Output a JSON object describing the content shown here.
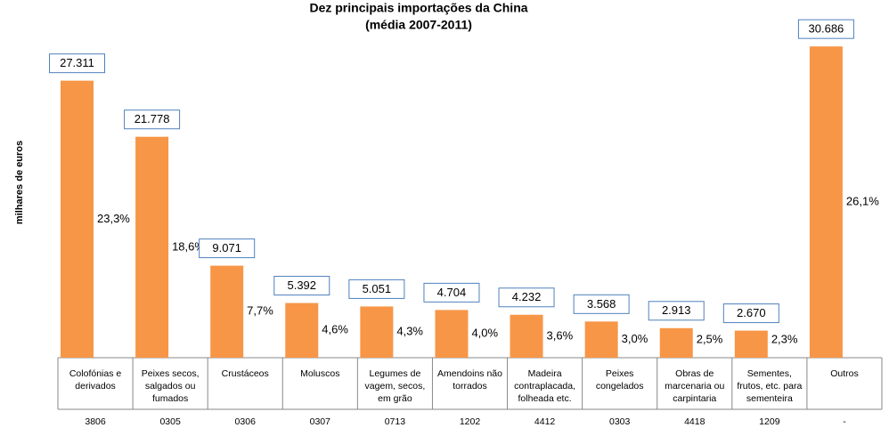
{
  "chart_data": {
    "type": "bar",
    "title": "Dez principais importações da China",
    "subtitle": "(média 2007-2011)",
    "y_label": "milhares de euros",
    "categories": [
      [
        "Colofónias e",
        "derivados"
      ],
      [
        "Peixes secos,",
        "salgados ou",
        "fumados"
      ],
      [
        "Crustáceos"
      ],
      [
        "Moluscos"
      ],
      [
        "Legumes de",
        "vagem, secos,",
        "em grão"
      ],
      [
        "Amendoins não",
        "torrados"
      ],
      [
        "Madeira",
        "contraplacada,",
        "folheada etc."
      ],
      [
        "Peixes",
        "congelados"
      ],
      [
        "Obras de",
        "marcenaria ou",
        "carpintaria"
      ],
      [
        "Sementes,",
        "frutos, etc. para",
        "sementeira"
      ],
      [
        "Outros"
      ]
    ],
    "codes": [
      "3806",
      "0305",
      "0306",
      "0307",
      "0713",
      "1202",
      "4412",
      "0303",
      "4418",
      "1209",
      "-"
    ],
    "values": [
      27311,
      21778,
      9071,
      5392,
      5051,
      4704,
      4232,
      3568,
      2913,
      2670,
      30686
    ],
    "value_labels": [
      "27.311",
      "21.778",
      "9.071",
      "5.392",
      "5.051",
      "4.704",
      "4.232",
      "3.568",
      "2.913",
      "2.670",
      "30.686"
    ],
    "shares": [
      23.3,
      18.6,
      7.7,
      4.6,
      4.3,
      4.0,
      3.6,
      3.0,
      2.5,
      2.3,
      26.1
    ],
    "share_labels": [
      "23,3%",
      "18,6%",
      "7,7%",
      "4,6%",
      "4,3%",
      "4,0%",
      "3,6%",
      "3,0%",
      "2,5%",
      "2,3%",
      "26,1%"
    ],
    "color": "#f79646",
    "ylim": [
      0,
      35000
    ]
  }
}
